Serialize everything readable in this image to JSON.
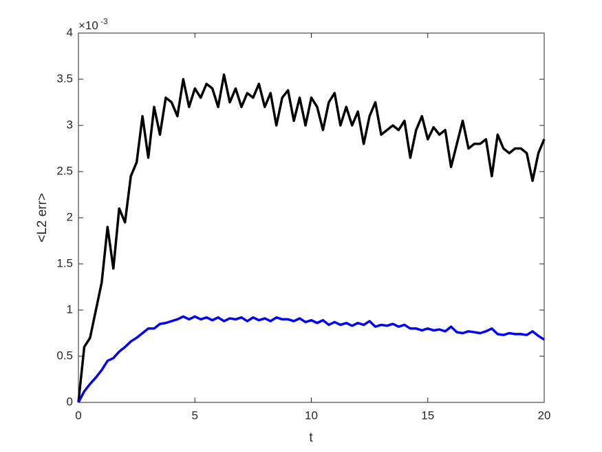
{
  "chart_data": {
    "type": "line",
    "x_label": "t",
    "y_label": "<L2 err>",
    "y_exponent": {
      "base": "×10",
      "power": "-3"
    },
    "xlim": [
      0,
      20
    ],
    "xticks": [
      0,
      5,
      10,
      15,
      20
    ],
    "ylim": [
      0,
      4
    ],
    "yticks": [
      0,
      0.5,
      1,
      1.5,
      2,
      2.5,
      3,
      3.5,
      4
    ],
    "grid": false,
    "box": true,
    "x": [
      0,
      0.25,
      0.5,
      0.75,
      1,
      1.25,
      1.5,
      1.75,
      2,
      2.25,
      2.5,
      2.75,
      3,
      3.25,
      3.5,
      3.75,
      4,
      4.25,
      4.5,
      4.75,
      5,
      5.25,
      5.5,
      5.75,
      6,
      6.25,
      6.5,
      6.75,
      7,
      7.25,
      7.5,
      7.75,
      8,
      8.25,
      8.5,
      8.75,
      9,
      9.25,
      9.5,
      9.75,
      10,
      10.25,
      10.5,
      10.75,
      11,
      11.25,
      11.5,
      11.75,
      12,
      12.25,
      12.5,
      12.75,
      13,
      13.25,
      13.5,
      13.75,
      14,
      14.25,
      14.5,
      14.75,
      15,
      15.25,
      15.5,
      15.75,
      16,
      16.25,
      16.5,
      16.75,
      17,
      17.25,
      17.5,
      17.75,
      18,
      18.25,
      18.5,
      18.75,
      19,
      19.25,
      19.5,
      19.75,
      20
    ],
    "series": [
      {
        "color": "#000000",
        "values": [
          0,
          0.6,
          0.7,
          1.0,
          1.3,
          1.9,
          1.45,
          2.1,
          1.95,
          2.45,
          2.6,
          3.1,
          2.65,
          3.2,
          2.9,
          3.3,
          3.25,
          3.1,
          3.5,
          3.2,
          3.4,
          3.3,
          3.45,
          3.4,
          3.2,
          3.55,
          3.25,
          3.4,
          3.2,
          3.35,
          3.3,
          3.45,
          3.2,
          3.35,
          3.0,
          3.3,
          3.38,
          3.05,
          3.3,
          3.0,
          3.3,
          3.2,
          2.95,
          3.25,
          3.35,
          3.0,
          3.2,
          3.0,
          3.15,
          2.8,
          3.1,
          3.25,
          2.9,
          2.95,
          3.0,
          2.95,
          3.05,
          2.65,
          2.95,
          3.1,
          2.85,
          2.98,
          2.9,
          2.95,
          2.55,
          2.8,
          3.05,
          2.75,
          2.8,
          2.8,
          2.85,
          2.45,
          2.9,
          2.75,
          2.7,
          2.75,
          2.75,
          2.7,
          2.4,
          2.7,
          2.85
        ]
      },
      {
        "color": "#0000ff",
        "values": [
          0,
          0.12,
          0.2,
          0.27,
          0.35,
          0.45,
          0.48,
          0.55,
          0.6,
          0.66,
          0.7,
          0.75,
          0.8,
          0.8,
          0.85,
          0.86,
          0.88,
          0.9,
          0.93,
          0.9,
          0.93,
          0.9,
          0.92,
          0.89,
          0.92,
          0.88,
          0.91,
          0.9,
          0.92,
          0.88,
          0.92,
          0.89,
          0.91,
          0.88,
          0.92,
          0.9,
          0.9,
          0.88,
          0.91,
          0.87,
          0.89,
          0.86,
          0.89,
          0.84,
          0.87,
          0.84,
          0.86,
          0.83,
          0.86,
          0.84,
          0.88,
          0.82,
          0.84,
          0.83,
          0.85,
          0.82,
          0.84,
          0.8,
          0.8,
          0.78,
          0.8,
          0.78,
          0.79,
          0.77,
          0.82,
          0.76,
          0.75,
          0.77,
          0.76,
          0.75,
          0.77,
          0.8,
          0.74,
          0.73,
          0.75,
          0.74,
          0.74,
          0.73,
          0.77,
          0.72,
          0.68
        ]
      }
    ]
  }
}
